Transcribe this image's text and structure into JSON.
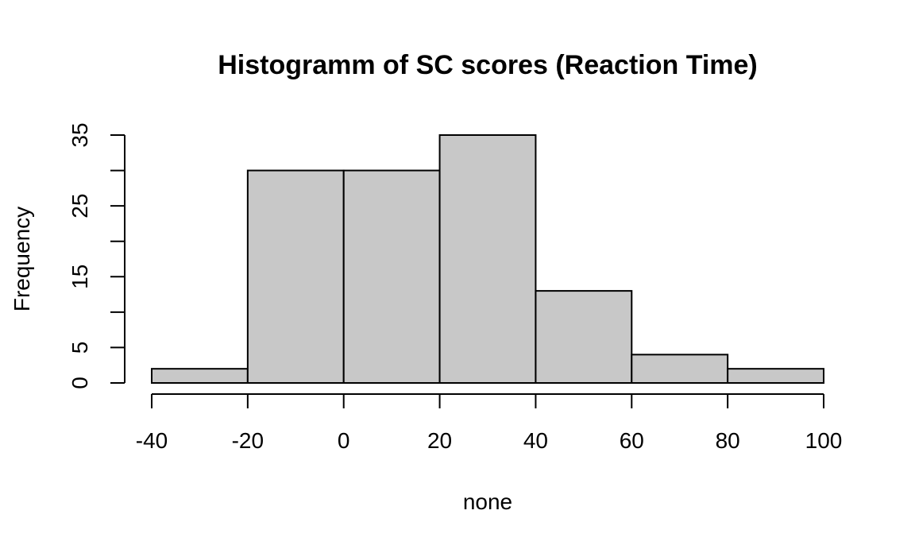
{
  "chart_data": {
    "type": "bar",
    "title": "Histogramm of SC scores (Reaction Time)",
    "xlabel": "none",
    "ylabel": "Frequency",
    "bins": [
      {
        "start": -40,
        "end": -20,
        "count": 2
      },
      {
        "start": -20,
        "end": 0,
        "count": 30
      },
      {
        "start": 0,
        "end": 20,
        "count": 30
      },
      {
        "start": 20,
        "end": 40,
        "count": 35
      },
      {
        "start": 40,
        "end": 60,
        "count": 13
      },
      {
        "start": 60,
        "end": 80,
        "count": 4
      },
      {
        "start": 80,
        "end": 100,
        "count": 2
      }
    ],
    "xlim": [
      -40,
      100
    ],
    "ylim": [
      0,
      35
    ],
    "x_ticks": [
      "-40",
      "-20",
      "0",
      "20",
      "40",
      "60",
      "80",
      "100"
    ],
    "y_ticks": [
      "0",
      "5",
      "15",
      "25",
      "35"
    ],
    "grid": false,
    "legend": "none",
    "colors": {
      "bar_fill": "#c8c8c8",
      "bar_stroke": "#000000"
    }
  }
}
